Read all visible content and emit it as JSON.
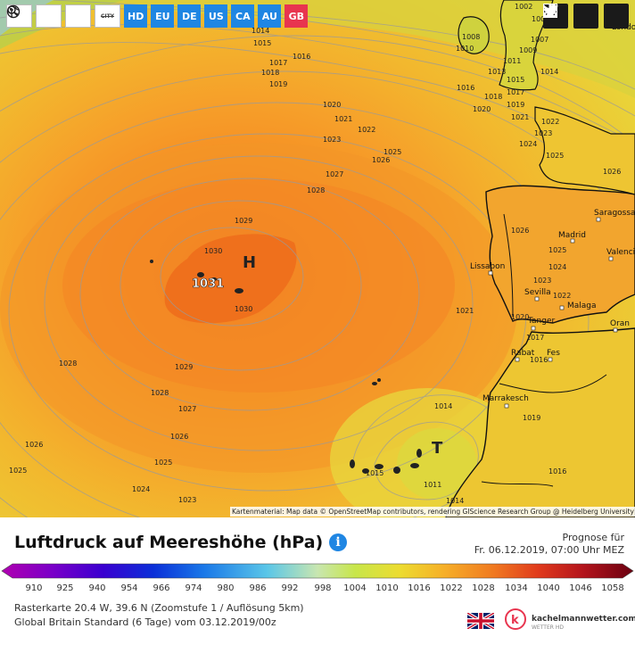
{
  "toolbar": {
    "refresh_icon": "refresh-icon",
    "globe_icon": "globe-icon",
    "zoom_icon": "zoom-in-icon",
    "city_label": "CITY",
    "regions": [
      {
        "label": "HD",
        "color": "#1f86e3"
      },
      {
        "label": "EU",
        "color": "#1f86e3"
      },
      {
        "label": "DE",
        "color": "#1f86e3"
      },
      {
        "label": "US",
        "color": "#1f86e3"
      },
      {
        "label": "CA",
        "color": "#1f86e3"
      },
      {
        "label": "AU",
        "color": "#1f86e3"
      },
      {
        "label": "GB",
        "color": "#e8354f"
      }
    ]
  },
  "social": [
    "twitter-icon",
    "facebook-icon",
    "download-icon"
  ],
  "map": {
    "attribution": "Kartenmaterial: Map data © OpenStreetMap contributors, rendering GIScience Research Group @ Heidelberg University",
    "pressure_centers": [
      {
        "label": "H",
        "value": "1031"
      },
      {
        "label": "T",
        "value": "1015"
      }
    ],
    "cities": [
      "Saragossa",
      "Madrid",
      "Valencia",
      "Lissabon",
      "Sevilla",
      "Malaga",
      "Oran",
      "Tanger",
      "Rabat",
      "Fes",
      "Marrakesch",
      "London"
    ],
    "isobar_labels": [
      "1002",
      "1006",
      "1008",
      "1010",
      "1007",
      "1009",
      "1011",
      "1013",
      "1014",
      "1015",
      "1016",
      "1017",
      "1018",
      "1019",
      "1020",
      "1021",
      "1022",
      "1023",
      "1024",
      "1025",
      "1026",
      "1027",
      "1028",
      "1029",
      "1030"
    ]
  },
  "footer": {
    "title": "Luftdruck auf Meereshöhe (hPa)",
    "forecast_label": "Prognose für",
    "forecast_time": "Fr. 06.12.2019, 07:00 Uhr MEZ",
    "scale_values": [
      "910",
      "925",
      "940",
      "954",
      "966",
      "974",
      "980",
      "986",
      "992",
      "998",
      "1004",
      "1010",
      "1016",
      "1022",
      "1028",
      "1034",
      "1040",
      "1046",
      "1058"
    ],
    "raster_info": "Rasterkarte 20.4 W, 39.6 N (Zoomstufe 1 / Auflösung 5km)",
    "model_info": "Global Britain Standard (6 Tage) vom 03.12.2019/00z",
    "brand": "kachelmannwetter.com",
    "brand_sub": "WETTER HD"
  }
}
